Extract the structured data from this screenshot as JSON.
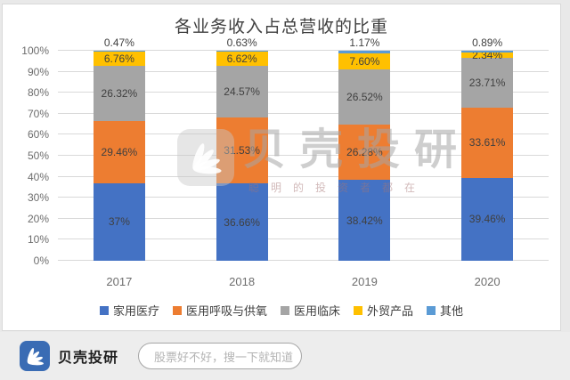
{
  "title": "各业务收入占总营收的比重",
  "watermark": {
    "brand": "贝壳投研",
    "tagline": "聪明的投资者都在"
  },
  "chart_data": {
    "type": "bar",
    "stacked": true,
    "title": "各业务收入占总营收的比重",
    "categories": [
      "2017",
      "2018",
      "2019",
      "2020"
    ],
    "series": [
      {
        "name": "家用医疗",
        "color": "#4472C4",
        "values": [
          37,
          36.66,
          38.42,
          39.46
        ],
        "labels": [
          "37%",
          "36.66%",
          "38.42%",
          "39.46%"
        ],
        "label_position": "inside"
      },
      {
        "name": "医用呼吸与供氧",
        "color": "#ED7D31",
        "values": [
          29.46,
          31.53,
          26.28,
          33.61
        ],
        "labels": [
          "29.46%",
          "31.53%",
          "26.28%",
          "33.61%"
        ],
        "label_position": "inside"
      },
      {
        "name": "医用临床",
        "color": "#A5A5A5",
        "values": [
          26.32,
          24.57,
          26.52,
          23.71
        ],
        "labels": [
          "26.32%",
          "24.57%",
          "26.52%",
          "23.71%"
        ],
        "label_position": "inside"
      },
      {
        "name": "外贸产品",
        "color": "#FFC000",
        "values": [
          6.76,
          6.62,
          7.6,
          2.34
        ],
        "labels": [
          "6.76%",
          "6.62%",
          "7.60%",
          "2.34%"
        ],
        "label_position": "inside"
      },
      {
        "name": "其他",
        "color": "#5B9BD5",
        "values": [
          0.47,
          0.63,
          1.17,
          0.89
        ],
        "labels": [
          "0.47%",
          "0.63%",
          "1.17%",
          "0.89%"
        ],
        "label_position": "above"
      }
    ],
    "yticks": [
      0,
      10,
      20,
      30,
      40,
      50,
      60,
      70,
      80,
      90,
      100
    ],
    "ytick_labels": [
      "0%",
      "10%",
      "20%",
      "30%",
      "40%",
      "50%",
      "60%",
      "70%",
      "80%",
      "90%",
      "100%"
    ],
    "ylim": [
      0,
      100
    ],
    "grid": true,
    "legend_position": "bottom"
  },
  "footer": {
    "brand": "贝壳投研",
    "search_placeholder": "股票好不好，搜一下就知道"
  }
}
